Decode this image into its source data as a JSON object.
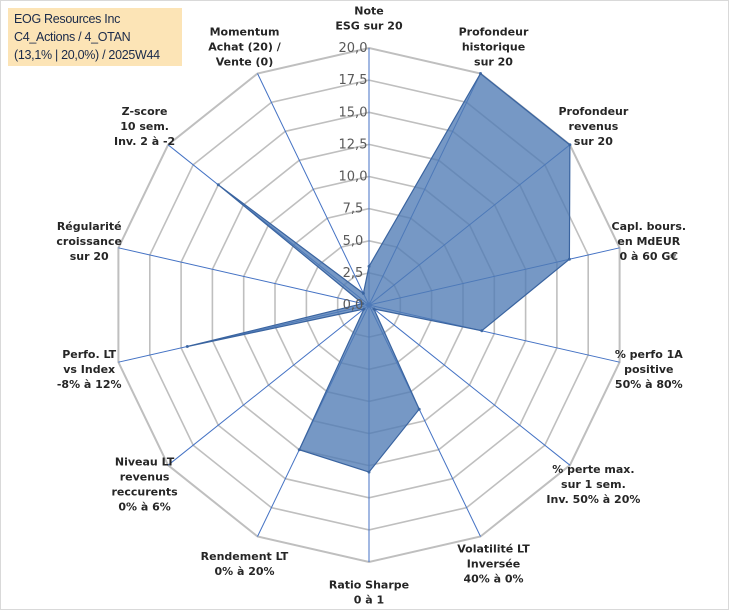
{
  "info": {
    "company": "EOG Resources Inc",
    "classification": "C4_Actions / 4_OTAN",
    "perf_week": "(13,1% | 20,0%) / 2025W44"
  },
  "colors": {
    "fill": "#4f7bb5",
    "fill_opacity": "0.78",
    "stroke": "#3a64a0",
    "grid": "#bfbfbf",
    "spoke": "#4472c4"
  },
  "chart_data": {
    "type": "radar",
    "rmin": 0,
    "rmax": 20,
    "ticks": [
      {
        "value": 0,
        "label": "0,0"
      },
      {
        "value": 2.5,
        "label": "2,5"
      },
      {
        "value": 5,
        "label": "5,0"
      },
      {
        "value": 7.5,
        "label": "7,5"
      },
      {
        "value": 10,
        "label": "10,0"
      },
      {
        "value": 12.5,
        "label": "12,5"
      },
      {
        "value": 15,
        "label": "15,0"
      },
      {
        "value": 17.5,
        "label": "17,5"
      },
      {
        "value": 20,
        "label": "20,0"
      }
    ],
    "axes": [
      {
        "lines": [
          "Note",
          "ESG sur 20"
        ],
        "value": 3
      },
      {
        "lines": [
          "Profondeur",
          "historique",
          "sur 20"
        ],
        "value": 20
      },
      {
        "lines": [
          "Profondeur",
          "revenus",
          "sur 20"
        ],
        "value": 20
      },
      {
        "lines": [
          "Capl. bours.",
          "en MdEUR",
          "0 à 60 G€"
        ],
        "value": 16
      },
      {
        "lines": [
          "% perfo 1A",
          "positive",
          "50% à 80%"
        ],
        "value": 9
      },
      {
        "lines": [
          "% perte max.",
          "sur 1 sem.",
          "Inv. 50% à 20%"
        ],
        "value": 0.5
      },
      {
        "lines": [
          "Volatilité LT",
          "Inversée",
          "40% à 0%"
        ],
        "value": 9
      },
      {
        "lines": [
          "Ratio Sharpe",
          "0 à 1"
        ],
        "value": 13
      },
      {
        "lines": [
          "Rendement LT",
          "0% à 20%"
        ],
        "value": 12.5
      },
      {
        "lines": [
          "Niveau LT",
          "revenus",
          "reccurents",
          "0% à 6%"
        ],
        "value": 0.5
      },
      {
        "lines": [
          "Perfo. LT",
          "vs Index",
          "-8% à 12%"
        ],
        "value": 14.5
      },
      {
        "lines": [
          "Régularité",
          "croissance",
          "sur 20"
        ],
        "value": 0.5
      },
      {
        "lines": [
          "Z-score",
          "10 sem.",
          "Inv. 2 à -2"
        ],
        "value": 15
      },
      {
        "lines": [
          "Momentum",
          "Achat (20) /",
          "Vente (0)"
        ],
        "value": 1
      }
    ]
  }
}
